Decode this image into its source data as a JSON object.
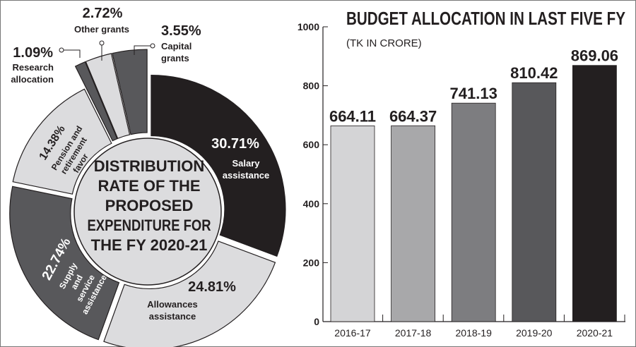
{
  "chart_data": [
    {
      "type": "pie",
      "title": "DISTRIBUTION RATE OF THE PROPOSED EXPENDITURE FOR THE FY 2020-21",
      "title_lines": [
        "DISTRIBUTION",
        "RATE OF THE",
        "PROPOSED",
        "EXPENDITURE FOR",
        "THE FY 2020-21"
      ],
      "slices": [
        {
          "label": "Salary assistance",
          "label_lines": [
            "Salary",
            "assistance"
          ],
          "value": 30.71,
          "value_label": "30.71%",
          "color": "#231f20"
        },
        {
          "label": "Allowances assistance",
          "label_lines": [
            "Allowances",
            "assistance"
          ],
          "value": 24.81,
          "value_label": "24.81%",
          "color": "#dcdcde"
        },
        {
          "label": "Supply and service assistance",
          "label_lines": [
            "Supply",
            "and",
            "service",
            "assistance"
          ],
          "value": 22.74,
          "value_label": "22.74%",
          "color": "#58585b"
        },
        {
          "label": "Pension and retirement favor",
          "label_lines": [
            "Pension and",
            "retirement",
            "favor"
          ],
          "value": 14.38,
          "value_label": "14.38%",
          "color": "#dcdcde"
        },
        {
          "label": "Research allocation",
          "label_lines": [
            "Research",
            "allocation"
          ],
          "value": 1.09,
          "value_label": "1.09%",
          "color": "#58585b"
        },
        {
          "label": "Other grants",
          "label_lines": [
            "Other grants"
          ],
          "value": 2.72,
          "value_label": "2.72%",
          "color": "#dcdcde"
        },
        {
          "label": "Capital grants",
          "label_lines": [
            "Capital",
            "grants"
          ],
          "value": 3.55,
          "value_label": "3.55%",
          "color": "#58585b"
        }
      ]
    },
    {
      "type": "bar",
      "title": "BUDGET ALLOCATION IN LAST FIVE FY",
      "subtitle": "(TK IN CRORE)",
      "categories": [
        "2016-17",
        "2017-18",
        "2018-19",
        "2019-20",
        "2020-21"
      ],
      "values": [
        664.11,
        664.37,
        741.13,
        810.42,
        869.06
      ],
      "data_labels": [
        "664.11",
        "664.37",
        "741.13",
        "810.42",
        "869.06"
      ],
      "colors": [
        "#d4d4d6",
        "#a8a8aa",
        "#7d7d80",
        "#58585b",
        "#231f20"
      ],
      "ylim": [
        0,
        1000
      ],
      "yticks": [
        "0",
        "200",
        "400",
        "600",
        "800",
        "1000"
      ],
      "grid": false
    }
  ]
}
